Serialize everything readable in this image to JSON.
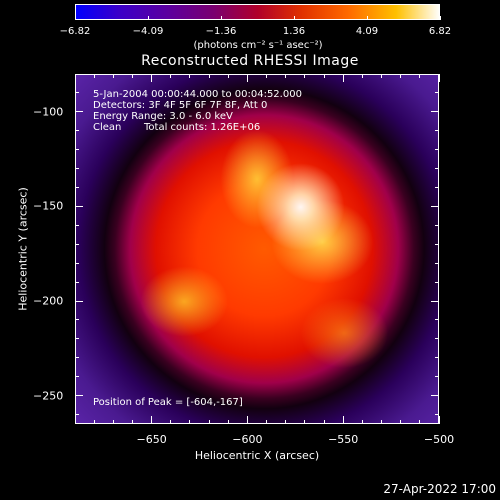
{
  "chart_data": {
    "type": "heatmap",
    "title": "Reconstructed RHESSI Image",
    "xlabel": "Heliocentric X (arcsec)",
    "ylabel": "Heliocentric Y (arcsec)",
    "xlim": [
      -690,
      -500
    ],
    "ylim": [
      -265,
      -80
    ],
    "x_ticks": [
      -650,
      -600,
      -550,
      -500
    ],
    "y_ticks": [
      -100,
      -150,
      -200,
      -250
    ],
    "colorbar": {
      "ticks": [
        "-6.82",
        "-4.09",
        "-1.36",
        "1.36",
        "4.09",
        "6.82"
      ],
      "range": [
        -6.82,
        6.82
      ],
      "units_label": "(photons cm⁻² s⁻¹ asec⁻²)"
    },
    "info": {
      "time_range": "5-Jan-2004 00:00:44.000 to 00:04:52.000",
      "detectors": "Detectors: 3F 4F 5F 6F 7F 8F, Att 0",
      "energy": "Energy Range: 3.0 - 6.0 keV",
      "clean_label": "Clean",
      "total_counts": "Total counts: 1.26E+06",
      "peak": "Position of Peak = [-604,-167]"
    },
    "peak_position": [
      -604,
      -167
    ]
  },
  "footer": {
    "datestamp": "27-Apr-2022 17:00"
  }
}
